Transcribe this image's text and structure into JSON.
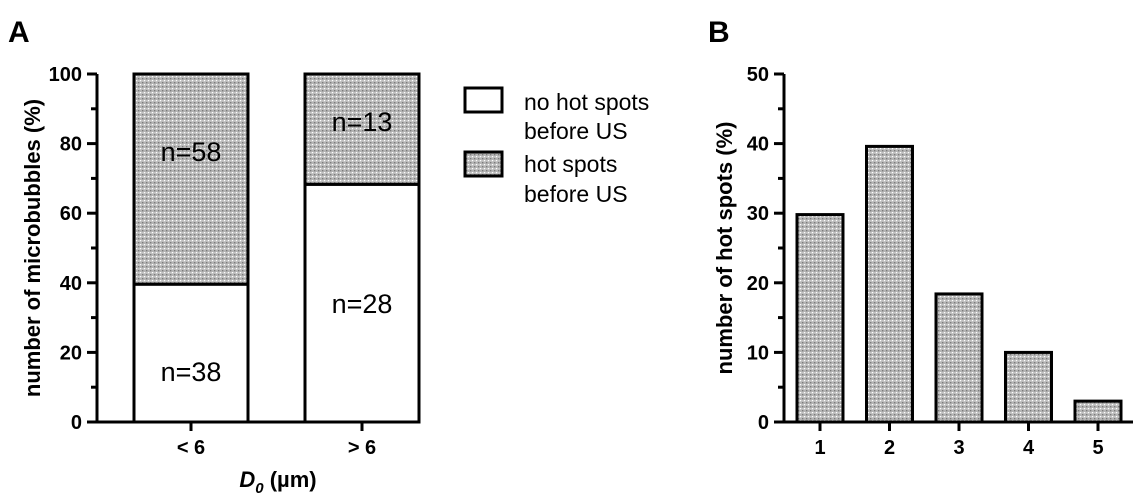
{
  "colors": {
    "hot_spot_fill": "#a9a9a9",
    "outline": "#000000",
    "background": "#ffffff"
  },
  "chart_data": [
    {
      "panel": "A",
      "type": "bar",
      "stacked": true,
      "categories": [
        "< 6",
        "> 6"
      ],
      "series": [
        {
          "name": "no hot spots before US",
          "values": [
            39.6,
            68.3
          ],
          "counts": [
            "n=38",
            "n=28"
          ],
          "fill": "white"
        },
        {
          "name": "hot spots before US",
          "values": [
            60.4,
            31.7
          ],
          "counts": [
            "n=58",
            "n=13"
          ],
          "fill": "dotted-gray"
        }
      ],
      "xlabel_main": "D",
      "xlabel_sub": "0",
      "xlabel_unit": " (µm)",
      "ylabel": "number of microbubbles (%)",
      "ylim": [
        0,
        100
      ],
      "yticks": [
        0,
        20,
        40,
        60,
        80,
        100
      ],
      "legend": {
        "position": "right",
        "entries": [
          "no hot spots",
          "before US",
          "hot spots",
          "before US"
        ]
      },
      "grid": false
    },
    {
      "panel": "B",
      "type": "bar",
      "categories": [
        "1",
        "2",
        "3",
        "4",
        "5"
      ],
      "values": [
        29.8,
        39.6,
        18.4,
        10.0,
        3.0
      ],
      "fill": "dotted-gray",
      "xlabel": "",
      "ylabel": "number of hot spots (%)",
      "ylim": [
        0,
        50
      ],
      "yticks": [
        0,
        10,
        20,
        30,
        40,
        50
      ],
      "grid": false
    }
  ]
}
